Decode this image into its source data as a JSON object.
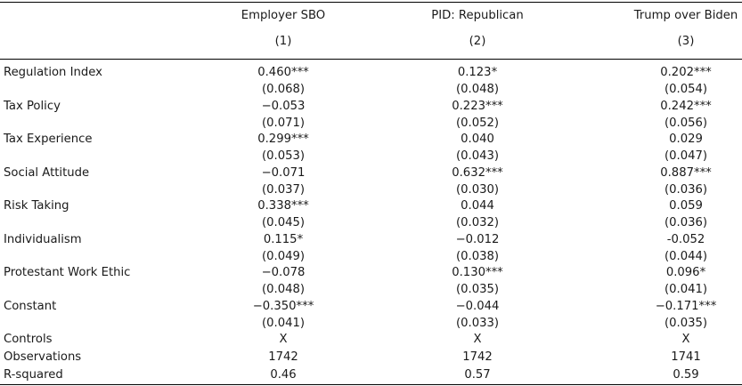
{
  "table": {
    "columns": [
      {
        "name": "Employer SBO",
        "num": "(1)"
      },
      {
        "name": "PID: Republican",
        "num": "(2)"
      },
      {
        "name": "Trump over Biden",
        "num": "(3)"
      }
    ],
    "rows": [
      {
        "label": "Regulation Index",
        "coef": [
          "0.460***",
          "0.123*",
          "0.202***"
        ],
        "se": [
          "(0.068)",
          "(0.048)",
          "(0.054)"
        ]
      },
      {
        "label": "Tax Policy",
        "coef": [
          "−0.053",
          "0.223***",
          "0.242***"
        ],
        "se": [
          "(0.071)",
          "(0.052)",
          "(0.056)"
        ]
      },
      {
        "label": "Tax Experience",
        "coef": [
          "0.299***",
          "0.040",
          "0.029"
        ],
        "se": [
          "(0.053)",
          "(0.043)",
          "(0.047)"
        ]
      },
      {
        "label": "Social Attitude",
        "coef": [
          "−0.071",
          "0.632***",
          "0.887***"
        ],
        "se": [
          "(0.037)",
          "(0.030)",
          "(0.036)"
        ]
      },
      {
        "label": "Risk Taking",
        "coef": [
          "0.338***",
          "0.044",
          "0.059"
        ],
        "se": [
          "(0.045)",
          "(0.032)",
          "(0.036)"
        ]
      },
      {
        "label": "Individualism",
        "coef": [
          "0.115*",
          "−0.012",
          "-0.052"
        ],
        "se": [
          "(0.049)",
          "(0.038)",
          "(0.044)"
        ]
      },
      {
        "label": "Protestant Work Ethic",
        "coef": [
          "−0.078",
          "0.130***",
          "0.096*"
        ],
        "se": [
          "(0.048)",
          "(0.035)",
          "(0.041)"
        ]
      },
      {
        "label": "Constant",
        "coef": [
          "−0.350***",
          "−0.044",
          "−0.171***"
        ],
        "se": [
          "(0.041)",
          "(0.033)",
          "(0.035)"
        ]
      }
    ],
    "footer": [
      {
        "label": "Controls",
        "values": [
          "X",
          "X",
          "X"
        ]
      },
      {
        "label": "Observations",
        "values": [
          "1742",
          "1742",
          "1741"
        ]
      },
      {
        "label": "R-squared",
        "values": [
          "0.46",
          "0.57",
          "0.59"
        ]
      }
    ]
  }
}
